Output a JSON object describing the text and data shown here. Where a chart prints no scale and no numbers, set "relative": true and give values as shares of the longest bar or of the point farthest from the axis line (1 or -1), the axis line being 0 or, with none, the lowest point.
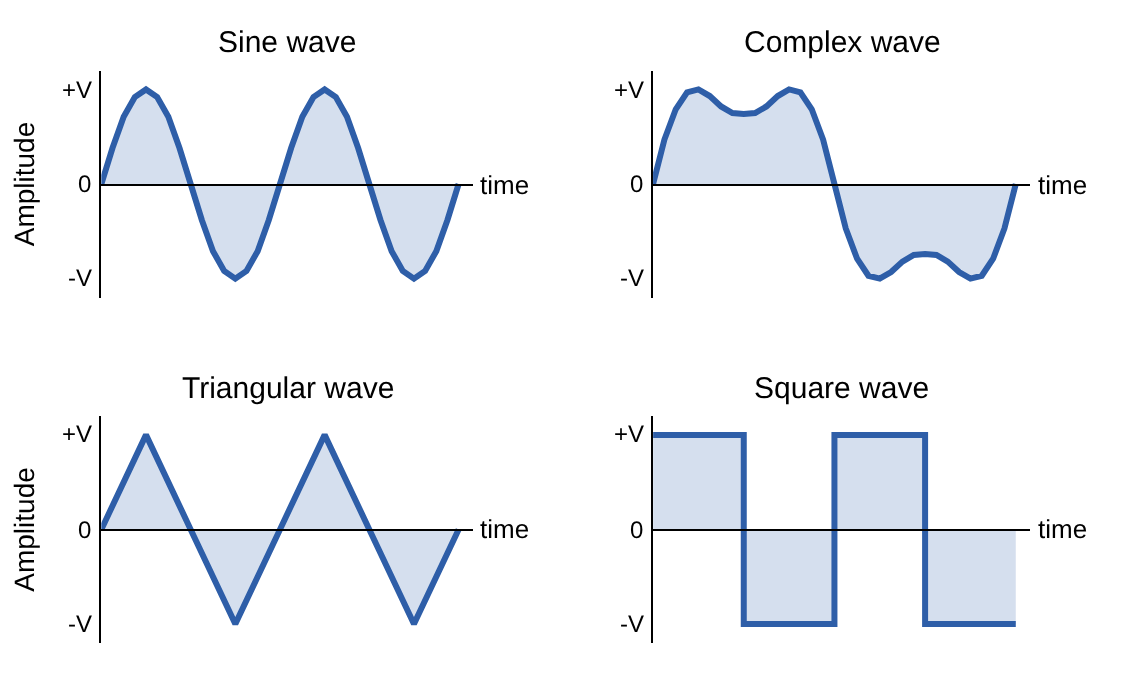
{
  "chart_data": [
    {
      "type": "area",
      "title": "Sine wave",
      "xlabel": "time",
      "ylabel": "Amplitude",
      "relative": true,
      "annotations": [
        "+V",
        "0",
        "-V"
      ],
      "categories": [
        null,
        null,
        null,
        null,
        null,
        null,
        null,
        null,
        null,
        null,
        null,
        null,
        null,
        null,
        null,
        null,
        null,
        null,
        null,
        null,
        null,
        null,
        null,
        null,
        null,
        null,
        null,
        null,
        null,
        null,
        null,
        null,
        null
      ],
      "series": [
        {
          "color": "#2e5ea8",
          "values": [
            0,
            0.38,
            0.71,
            0.92,
            1,
            0.92,
            0.71,
            0.38,
            0,
            -0.38,
            -0.71,
            -0.92,
            -1,
            -0.92,
            -0.71,
            -0.38,
            0,
            0.38,
            0.71,
            0.92,
            1,
            0.92,
            0.71,
            0.38,
            0,
            -0.38,
            -0.71,
            -0.92,
            -1,
            -0.92,
            -0.71,
            -0.38,
            0
          ]
        }
      ]
    },
    {
      "type": "area",
      "title": "Complex wave",
      "xlabel": "time",
      "relative": true,
      "annotations": [
        "+V",
        "0",
        "-V"
      ],
      "categories": [
        null,
        null,
        null,
        null,
        null,
        null,
        null,
        null,
        null,
        null,
        null,
        null,
        null,
        null,
        null,
        null,
        null,
        null,
        null,
        null,
        null,
        null,
        null,
        null,
        null,
        null,
        null,
        null,
        null,
        null,
        null,
        null,
        null
      ],
      "series": [
        {
          "color": "#2e5ea8",
          "values": [
            0,
            0.47,
            0.79,
            0.97,
            1,
            0.93,
            0.82,
            0.75,
            0.74,
            0.75,
            0.82,
            0.93,
            1,
            0.97,
            0.79,
            0.47,
            0,
            -0.47,
            -0.79,
            -0.97,
            -1,
            -0.93,
            -0.82,
            -0.75,
            -0.74,
            -0.75,
            -0.82,
            -0.93,
            -1,
            -0.97,
            -0.79,
            -0.47,
            0
          ]
        }
      ]
    },
    {
      "type": "area",
      "title": "Triangular wave",
      "xlabel": "time",
      "ylabel": "Amplitude",
      "relative": true,
      "annotations": [
        "+V",
        "0",
        "-V"
      ],
      "categories": [
        null,
        null,
        null,
        null,
        null,
        null,
        null,
        null,
        null
      ],
      "series": [
        {
          "color": "#2e5ea8",
          "values": [
            0,
            1,
            0,
            -1,
            0,
            1,
            0,
            -1,
            0
          ]
        }
      ]
    },
    {
      "type": "step",
      "title": "Square wave",
      "xlabel": "time",
      "relative": true,
      "annotations": [
        "+V",
        "0",
        "-V"
      ],
      "categories": [
        null,
        null,
        null,
        null,
        null,
        null,
        null,
        null,
        null
      ],
      "series": [
        {
          "color": "#2e5ea8",
          "values": [
            1,
            1,
            -1,
            -1,
            1,
            1,
            -1,
            -1,
            -1
          ]
        }
      ]
    }
  ]
}
